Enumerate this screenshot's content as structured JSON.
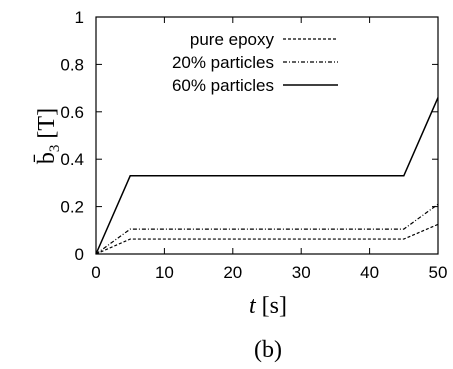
{
  "chart_data": {
    "type": "line",
    "xlabel": "t [s]",
    "ylabel": "b̄3 [T]",
    "caption": "(b)",
    "xlim": [
      0,
      50
    ],
    "ylim": [
      0,
      1
    ],
    "xticks": [
      0,
      10,
      20,
      30,
      40,
      50
    ],
    "yticks": [
      0,
      0.2,
      0.4,
      0.6,
      0.8,
      1
    ],
    "ytick_labels": [
      "0",
      "0.2",
      "0.4",
      "0.6",
      "0.8",
      "1"
    ],
    "grid": false,
    "legend_position": "top-right",
    "series": [
      {
        "name": "pure epoxy",
        "style": "dashed",
        "color": "#000000",
        "x": [
          0,
          5,
          45,
          50
        ],
        "y": [
          0,
          0.063,
          0.063,
          0.125
        ]
      },
      {
        "name": "20% particles",
        "style": "dashdot",
        "color": "#000000",
        "x": [
          0,
          5,
          45,
          50
        ],
        "y": [
          0,
          0.105,
          0.105,
          0.21
        ]
      },
      {
        "name": "60% particles",
        "style": "solid",
        "color": "#000000",
        "x": [
          0,
          5,
          45,
          50
        ],
        "y": [
          0,
          0.33,
          0.33,
          0.66
        ]
      }
    ]
  }
}
